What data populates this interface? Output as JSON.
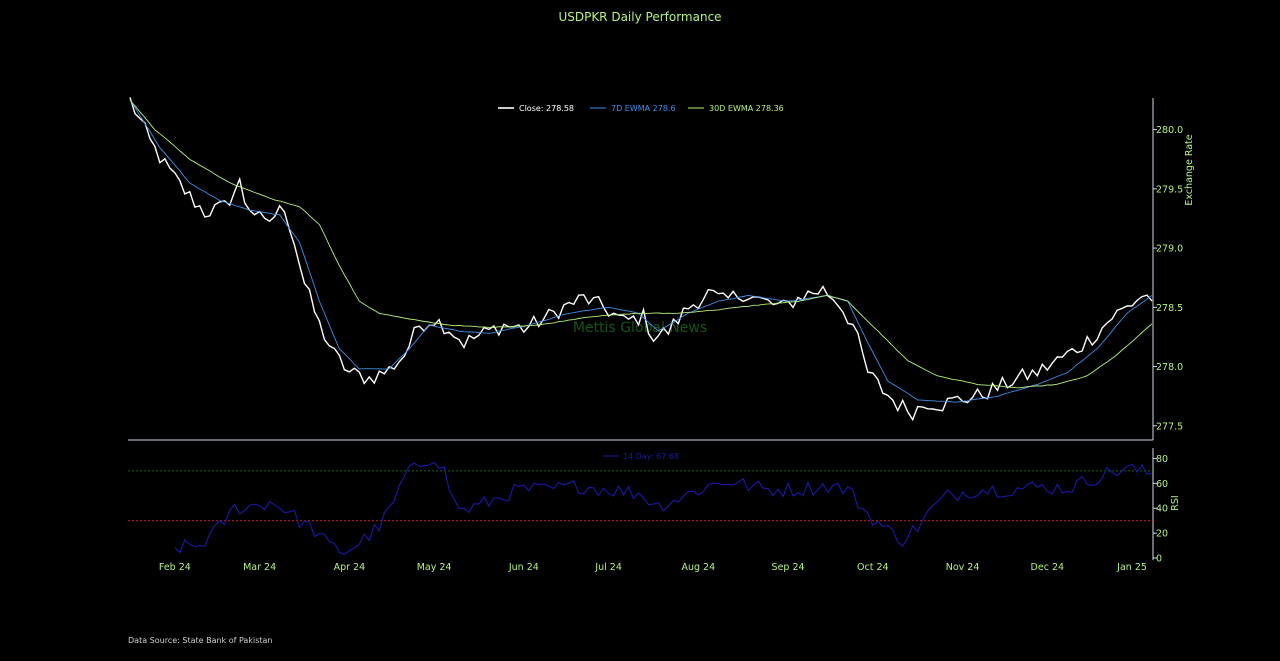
{
  "title": "USDPKR Daily Performance",
  "source": "Data Source: State Bank of Pakistan",
  "watermark": "Mettis Global News",
  "colors": {
    "close": "#ffffff",
    "ewma7": "#3b8fe8",
    "ewma30": "#b5f27a",
    "rsi": "#1a1aa8",
    "overbought": "#1f8a1f",
    "oversold": "#e02020",
    "axis_text": "#b5f27a",
    "spine": "#cfd8e6"
  },
  "chart_data": [
    {
      "type": "line",
      "panel": "price",
      "ylabel": "Exchange Rate",
      "ylim": [
        277.38,
        280.25
      ],
      "yticks": [
        277.5,
        278.0,
        278.5,
        279.0,
        279.5,
        280.0
      ],
      "ytick_labels": [
        "277.5",
        "278.0",
        "278.5",
        "279.0",
        "279.5",
        "280.0"
      ],
      "legend_position": "top-center",
      "series": [
        {
          "key": "close",
          "name": "Close: 278.58",
          "anchors": [
            [
              0,
              280.25
            ],
            [
              4,
              279.9
            ],
            [
              7,
              279.7
            ],
            [
              11,
              279.48
            ],
            [
              15,
              279.3
            ],
            [
              19,
              279.35
            ],
            [
              22,
              279.55
            ],
            [
              23,
              279.4
            ],
            [
              27,
              279.2
            ],
            [
              31,
              279.35
            ],
            [
              33,
              279.05
            ],
            [
              35,
              278.7
            ],
            [
              38,
              278.35
            ],
            [
              41,
              278.1
            ],
            [
              44,
              277.95
            ],
            [
              48,
              277.9
            ],
            [
              52,
              277.97
            ],
            [
              55,
              278.1
            ],
            [
              58,
              278.35
            ],
            [
              61,
              278.4
            ],
            [
              64,
              278.32
            ],
            [
              67,
              278.2
            ],
            [
              71,
              278.28
            ],
            [
              75,
              278.35
            ],
            [
              79,
              278.32
            ],
            [
              83,
              278.4
            ],
            [
              87,
              278.5
            ],
            [
              91,
              278.58
            ],
            [
              95,
              278.5
            ],
            [
              99,
              278.38
            ],
            [
              103,
              278.42
            ],
            [
              105,
              278.25
            ],
            [
              108,
              278.3
            ],
            [
              112,
              278.5
            ],
            [
              116,
              278.62
            ],
            [
              119,
              278.55
            ],
            [
              123,
              278.62
            ],
            [
              127,
              278.55
            ],
            [
              131,
              278.5
            ],
            [
              135,
              278.6
            ],
            [
              139,
              278.65
            ],
            [
              142,
              278.55
            ],
            [
              145,
              278.35
            ],
            [
              148,
              277.95
            ],
            [
              151,
              277.8
            ],
            [
              154,
              277.68
            ],
            [
              157,
              277.62
            ],
            [
              160,
              277.7
            ],
            [
              163,
              277.68
            ],
            [
              166,
              277.72
            ],
            [
              170,
              277.75
            ],
            [
              174,
              277.82
            ],
            [
              178,
              277.9
            ],
            [
              182,
              277.95
            ],
            [
              186,
              278.05
            ],
            [
              190,
              278.15
            ],
            [
              194,
              278.28
            ],
            [
              197,
              278.42
            ],
            [
              200,
              278.5
            ],
            [
              203,
              278.6
            ],
            [
              205,
              278.58
            ]
          ]
        },
        {
          "key": "ewma7",
          "name": "7D EWMA 278.6",
          "anchors": [
            [
              0,
              280.25
            ],
            [
              6,
              279.85
            ],
            [
              12,
              279.55
            ],
            [
              18,
              279.4
            ],
            [
              24,
              279.32
            ],
            [
              30,
              279.28
            ],
            [
              34,
              279.05
            ],
            [
              38,
              278.55
            ],
            [
              42,
              278.15
            ],
            [
              46,
              277.98
            ],
            [
              52,
              277.98
            ],
            [
              56,
              278.15
            ],
            [
              60,
              278.35
            ],
            [
              66,
              278.3
            ],
            [
              72,
              278.28
            ],
            [
              80,
              278.35
            ],
            [
              88,
              278.45
            ],
            [
              96,
              278.5
            ],
            [
              102,
              278.45
            ],
            [
              106,
              278.3
            ],
            [
              112,
              278.45
            ],
            [
              118,
              278.55
            ],
            [
              124,
              278.6
            ],
            [
              132,
              278.55
            ],
            [
              140,
              278.6
            ],
            [
              144,
              278.55
            ],
            [
              148,
              278.2
            ],
            [
              152,
              277.88
            ],
            [
              158,
              277.72
            ],
            [
              166,
              277.7
            ],
            [
              174,
              277.75
            ],
            [
              182,
              277.85
            ],
            [
              188,
              277.95
            ],
            [
              194,
              278.15
            ],
            [
              200,
              278.45
            ],
            [
              205,
              278.6
            ]
          ]
        },
        {
          "key": "ewma30",
          "name": "30D EWMA 278.36",
          "anchors": [
            [
              0,
              280.25
            ],
            [
              5,
              280.0
            ],
            [
              12,
              279.75
            ],
            [
              20,
              279.55
            ],
            [
              28,
              279.42
            ],
            [
              34,
              279.35
            ],
            [
              38,
              279.2
            ],
            [
              42,
              278.85
            ],
            [
              46,
              278.55
            ],
            [
              50,
              278.45
            ],
            [
              56,
              278.4
            ],
            [
              64,
              278.35
            ],
            [
              72,
              278.33
            ],
            [
              82,
              278.35
            ],
            [
              92,
              278.42
            ],
            [
              102,
              278.45
            ],
            [
              110,
              278.45
            ],
            [
              118,
              278.48
            ],
            [
              126,
              278.52
            ],
            [
              134,
              278.55
            ],
            [
              140,
              278.6
            ],
            [
              144,
              278.55
            ],
            [
              150,
              278.3
            ],
            [
              156,
              278.05
            ],
            [
              162,
              277.92
            ],
            [
              170,
              277.85
            ],
            [
              178,
              277.82
            ],
            [
              186,
              277.85
            ],
            [
              192,
              277.92
            ],
            [
              198,
              278.1
            ],
            [
              205,
              278.36
            ]
          ]
        }
      ],
      "noise_amplitude": 0.07
    },
    {
      "type": "line",
      "panel": "rsi",
      "ylabel": "RSI",
      "ylim": [
        0,
        90
      ],
      "yticks": [
        0,
        20,
        40,
        60,
        80
      ],
      "ytick_labels": [
        "0",
        "20",
        "40",
        "60",
        "80"
      ],
      "overbought_level": 70,
      "oversold_level": 30,
      "legend_position": "top-center",
      "series": [
        {
          "key": "rsi",
          "name": "14 Day: 67.68",
          "start_index": 9,
          "anchors": [
            [
              9,
              8
            ],
            [
              14,
              10
            ],
            [
              18,
              25
            ],
            [
              21,
              40
            ],
            [
              25,
              42
            ],
            [
              28,
              45
            ],
            [
              31,
              40
            ],
            [
              34,
              30
            ],
            [
              37,
              22
            ],
            [
              40,
              10
            ],
            [
              43,
              5
            ],
            [
              46,
              12
            ],
            [
              50,
              25
            ],
            [
              53,
              45
            ],
            [
              55,
              65
            ],
            [
              58,
              75
            ],
            [
              61,
              82
            ],
            [
              63,
              70
            ],
            [
              65,
              45
            ],
            [
              67,
              38
            ],
            [
              72,
              45
            ],
            [
              78,
              55
            ],
            [
              84,
              55
            ],
            [
              90,
              58
            ],
            [
              96,
              55
            ],
            [
              102,
              52
            ],
            [
              106,
              42
            ],
            [
              110,
              48
            ],
            [
              116,
              58
            ],
            [
              120,
              62
            ],
            [
              124,
              58
            ],
            [
              128,
              55
            ],
            [
              134,
              55
            ],
            [
              140,
              58
            ],
            [
              144,
              55
            ],
            [
              148,
              35
            ],
            [
              152,
              22
            ],
            [
              155,
              15
            ],
            [
              158,
              25
            ],
            [
              161,
              40
            ],
            [
              164,
              50
            ],
            [
              170,
              55
            ],
            [
              176,
              55
            ],
            [
              182,
              57
            ],
            [
              188,
              56
            ],
            [
              192,
              62
            ],
            [
              196,
              68
            ],
            [
              200,
              72
            ],
            [
              205,
              67.68
            ]
          ]
        }
      ],
      "noise_amplitude": 6
    }
  ],
  "x_axis": {
    "n_points": 206,
    "tick_labels": [
      "Feb 24",
      "Mar 24",
      "Apr 24",
      "May 24",
      "Jun 24",
      "Jul 24",
      "Aug 24",
      "Sep 24",
      "Oct 24",
      "Nov 24",
      "Dec 24",
      "Jan 25"
    ],
    "tick_index": [
      9,
      26,
      44,
      61,
      79,
      96,
      114,
      132,
      149,
      167,
      184,
      201
    ]
  }
}
